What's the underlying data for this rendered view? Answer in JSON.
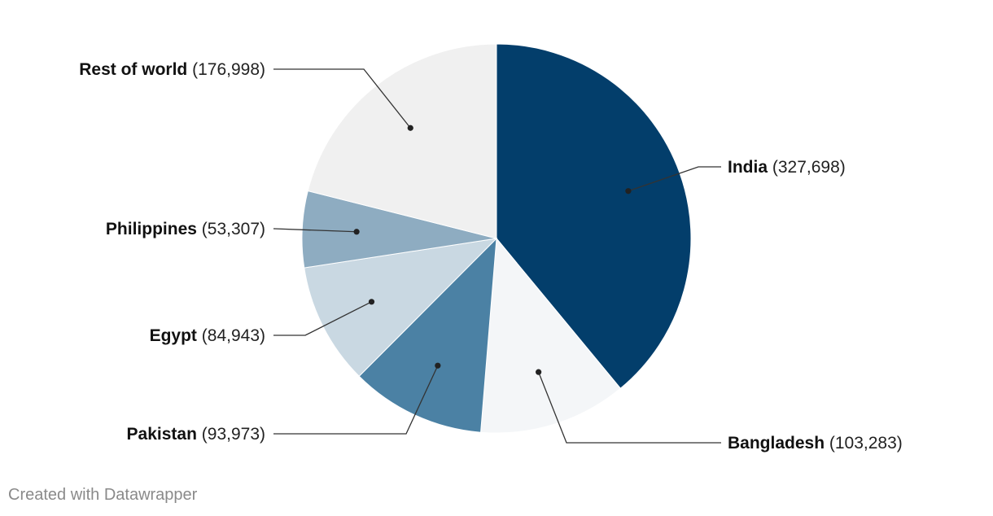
{
  "chart_data": {
    "type": "pie",
    "slices": [
      {
        "label": "India",
        "value": 327698,
        "value_text": "(327,698)",
        "color": "#033e6b",
        "side": "right"
      },
      {
        "label": "Bangladesh",
        "value": 103283,
        "value_text": "(103,283)",
        "color": "#f4f6f8",
        "side": "right"
      },
      {
        "label": "Pakistan",
        "value": 93973,
        "value_text": "(93,973)",
        "color": "#4b81a4",
        "side": "left"
      },
      {
        "label": "Egypt",
        "value": 84943,
        "value_text": "(84,943)",
        "color": "#c9d8e2",
        "side": "left"
      },
      {
        "label": "Philippines",
        "value": 53307,
        "value_text": "(53,307)",
        "color": "#8eacc1",
        "side": "left"
      },
      {
        "label": "Rest of world",
        "value": 176998,
        "value_text": "(176,998)",
        "color": "#f0f0f0",
        "side": "left"
      }
    ],
    "start": "12 o'clock",
    "direction": "clockwise"
  },
  "footer": {
    "credit": "Created with Datawrapper"
  }
}
